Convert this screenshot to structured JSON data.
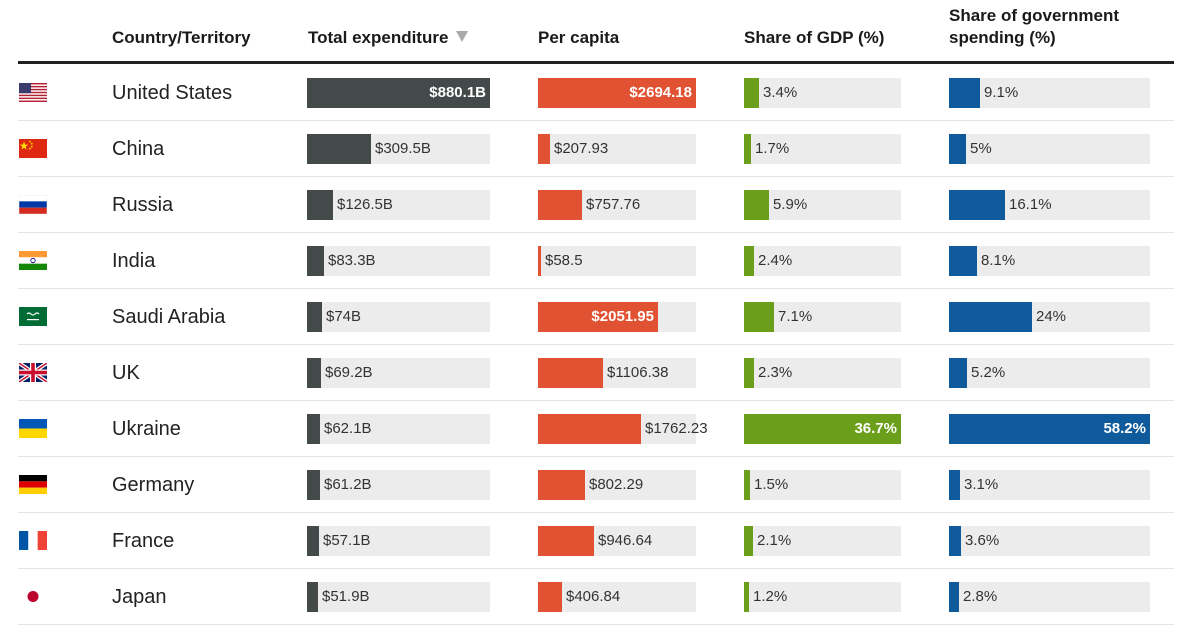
{
  "headers": {
    "country": "Country/Territory",
    "total": "Total expenditure",
    "per_capita": "Per capita",
    "gdp": "Share of GDP (%)",
    "gov_line1": "Share of government",
    "gov_line2": "spending (%)"
  },
  "colors": {
    "total": "#444a4a",
    "per_capita": "#e15232",
    "gdp": "#6b9e1a",
    "gov": "#0e5a9a",
    "track": "#ececec"
  },
  "rows": [
    {
      "flag": "us-flag",
      "country": "United States",
      "total_label": "$880.1B",
      "per_capita_label": "$2694.18",
      "gdp_label": "3.4%",
      "gov_label": "9.1%"
    },
    {
      "flag": "china-flag",
      "country": "China",
      "total_label": "$309.5B",
      "per_capita_label": "$207.93",
      "gdp_label": "1.7%",
      "gov_label": "5%"
    },
    {
      "flag": "russia-flag",
      "country": "Russia",
      "total_label": "$126.5B",
      "per_capita_label": "$757.76",
      "gdp_label": "5.9%",
      "gov_label": "16.1%"
    },
    {
      "flag": "india-flag",
      "country": "India",
      "total_label": "$83.3B",
      "per_capita_label": "$58.5",
      "gdp_label": "2.4%",
      "gov_label": "8.1%"
    },
    {
      "flag": "saudi-arabia-flag",
      "country": "Saudi Arabia",
      "total_label": "$74B",
      "per_capita_label": "$2051.95",
      "gdp_label": "7.1%",
      "gov_label": "24%"
    },
    {
      "flag": "uk-flag",
      "country": "UK",
      "total_label": "$69.2B",
      "per_capita_label": "$1106.38",
      "gdp_label": "2.3%",
      "gov_label": "5.2%"
    },
    {
      "flag": "ukraine-flag",
      "country": "Ukraine",
      "total_label": "$62.1B",
      "per_capita_label": "$1762.23",
      "gdp_label": "36.7%",
      "gov_label": "58.2%"
    },
    {
      "flag": "germany-flag",
      "country": "Germany",
      "total_label": "$61.2B",
      "per_capita_label": "$802.29",
      "gdp_label": "1.5%",
      "gov_label": "3.1%"
    },
    {
      "flag": "france-flag",
      "country": "France",
      "total_label": "$57.1B",
      "per_capita_label": "$946.64",
      "gdp_label": "2.1%",
      "gov_label": "3.6%"
    },
    {
      "flag": "japan-flag",
      "country": "Japan",
      "total_label": "$51.9B",
      "per_capita_label": "$406.84",
      "gdp_label": "1.2%",
      "gov_label": "2.8%"
    }
  ],
  "chart_data": {
    "type": "table",
    "sort_column": "Total expenditure",
    "sort_order": "descending",
    "columns": [
      "Country/Territory",
      "Total expenditure",
      "Per capita",
      "Share of GDP (%)",
      "Share of government spending (%)"
    ],
    "categories": [
      "United States",
      "China",
      "Russia",
      "India",
      "Saudi Arabia",
      "UK",
      "Ukraine",
      "Germany",
      "France",
      "Japan"
    ],
    "series": [
      {
        "name": "Total expenditure",
        "unit": "billion USD",
        "values": [
          880.1,
          309.5,
          126.5,
          83.3,
          74,
          69.2,
          62.1,
          61.2,
          57.1,
          51.9
        ]
      },
      {
        "name": "Per capita",
        "unit": "USD",
        "values": [
          2694.18,
          207.93,
          757.76,
          58.5,
          2051.95,
          1106.38,
          1762.23,
          802.29,
          946.64,
          406.84
        ]
      },
      {
        "name": "Share of GDP (%)",
        "unit": "%",
        "values": [
          3.4,
          1.7,
          5.9,
          2.4,
          7.1,
          2.3,
          36.7,
          1.5,
          2.1,
          1.2
        ]
      },
      {
        "name": "Share of government spending (%)",
        "unit": "%",
        "values": [
          9.1,
          5,
          16.1,
          8.1,
          24,
          5.2,
          58.2,
          3.1,
          3.6,
          2.8
        ]
      }
    ]
  }
}
